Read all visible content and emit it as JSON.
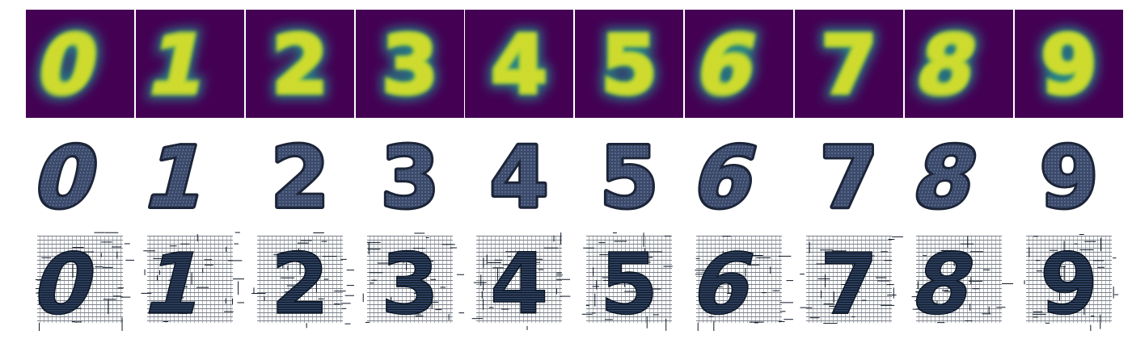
{
  "digits": [
    {
      "glyph": "0",
      "style": "italic"
    },
    {
      "glyph": "1",
      "style": "italic"
    },
    {
      "glyph": "2",
      "style": "normal"
    },
    {
      "glyph": "3",
      "style": "normal"
    },
    {
      "glyph": "4",
      "style": "normal"
    },
    {
      "glyph": "5",
      "style": "normal"
    },
    {
      "glyph": "6",
      "style": "italic"
    },
    {
      "glyph": "7",
      "style": "normal"
    },
    {
      "glyph": "8",
      "style": "italic"
    },
    {
      "glyph": "9",
      "style": "normal"
    }
  ],
  "colors": {
    "heatmap_background": "#440154",
    "heatmap_glow": "#21918c",
    "heatmap_core": "#b5de2b",
    "heatmap_peak": "#fde725",
    "filled_digit": "#3b4a6b",
    "filled_digit_edge": "#1c2438",
    "hatch_line": "#0d1726",
    "hatch_fill": "#2c3e5c",
    "background": "#ffffff"
  }
}
